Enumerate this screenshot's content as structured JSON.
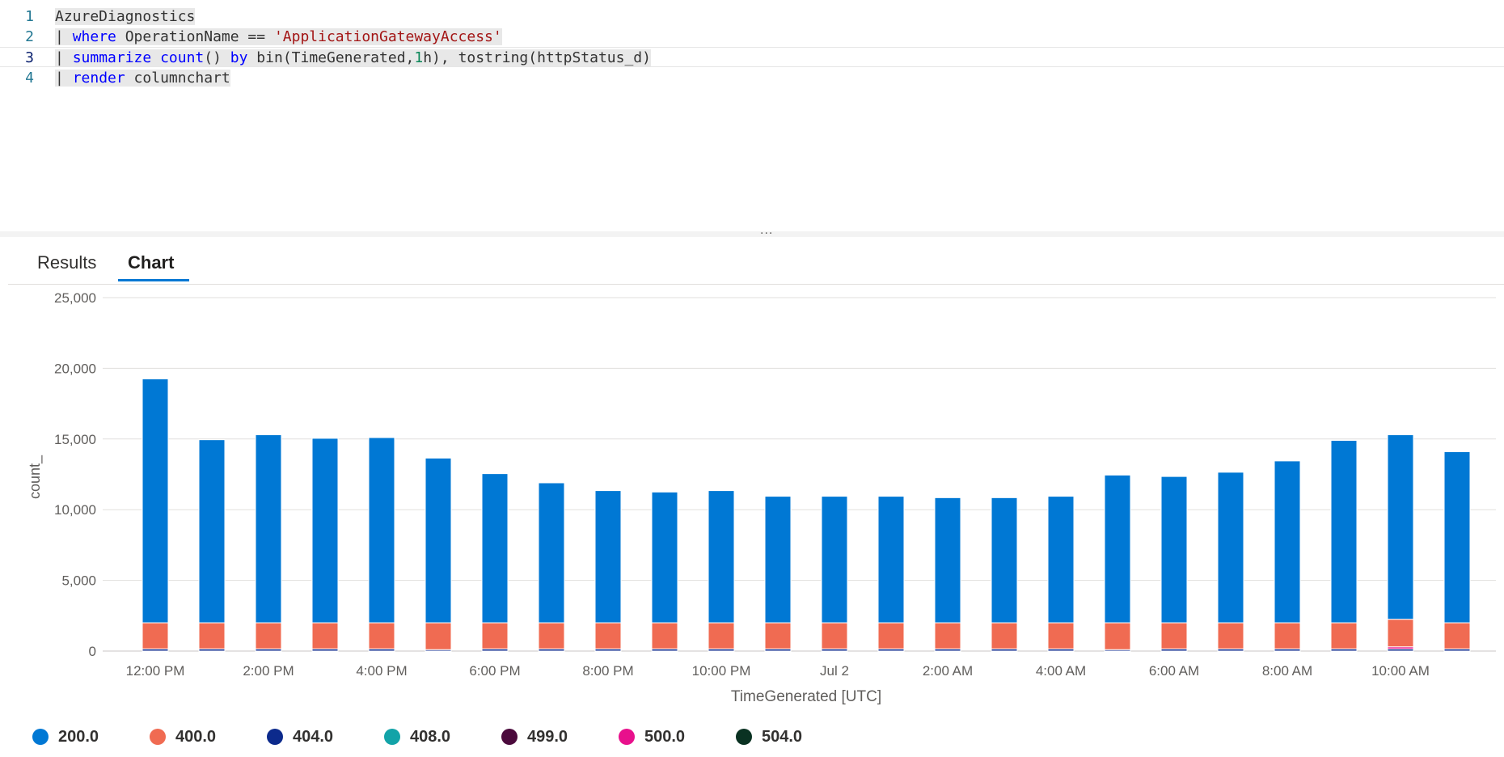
{
  "editor": {
    "lines": [
      {
        "num": "1",
        "tokens": [
          {
            "t": "AzureDiagnostics",
            "c": "plain"
          }
        ]
      },
      {
        "num": "2",
        "tokens": [
          {
            "t": "| ",
            "c": "plain"
          },
          {
            "t": "where",
            "c": "kw"
          },
          {
            "t": " OperationName == ",
            "c": "plain"
          },
          {
            "t": "'ApplicationGatewayAccess'",
            "c": "str"
          }
        ]
      },
      {
        "num": "3",
        "tokens": [
          {
            "t": "| ",
            "c": "plain"
          },
          {
            "t": "summarize",
            "c": "kw"
          },
          {
            "t": " ",
            "c": "plain"
          },
          {
            "t": "count",
            "c": "kw"
          },
          {
            "t": "() ",
            "c": "plain"
          },
          {
            "t": "by",
            "c": "kw"
          },
          {
            "t": " bin(TimeGenerated,",
            "c": "plain"
          },
          {
            "t": "1",
            "c": "num"
          },
          {
            "t": "h), tostring(httpStatus_d)",
            "c": "plain"
          }
        ]
      },
      {
        "num": "4",
        "tokens": [
          {
            "t": "| ",
            "c": "plain"
          },
          {
            "t": "render",
            "c": "kw"
          },
          {
            "t": " columnchart",
            "c": "plain"
          }
        ]
      }
    ]
  },
  "splitter": {
    "dots": "..."
  },
  "tabs": [
    {
      "label": "Results",
      "active": false
    },
    {
      "label": "Chart",
      "active": true
    }
  ],
  "chart_data": {
    "type": "bar",
    "stacked": true,
    "xlabel": "TimeGenerated [UTC]",
    "ylabel": "count_",
    "ylim": [
      0,
      25000
    ],
    "yticks": [
      0,
      5000,
      10000,
      15000,
      20000,
      25000
    ],
    "ytick_labels": [
      "0",
      "5,000",
      "10,000",
      "15,000",
      "20,000",
      "25,000"
    ],
    "grid": true,
    "legend_position": "bottom",
    "categories": [
      "12:00 PM",
      "1:00 PM",
      "2:00 PM",
      "3:00 PM",
      "4:00 PM",
      "5:00 PM",
      "6:00 PM",
      "7:00 PM",
      "8:00 PM",
      "9:00 PM",
      "10:00 PM",
      "11:00 PM",
      "Jul 2",
      "1:00 AM",
      "2:00 AM",
      "3:00 AM",
      "4:00 AM",
      "5:00 AM",
      "6:00 AM",
      "7:00 AM",
      "8:00 AM",
      "9:00 AM",
      "10:00 AM",
      "11:00 AM"
    ],
    "xtick_labels": [
      "12:00 PM",
      "2:00 PM",
      "4:00 PM",
      "6:00 PM",
      "8:00 PM",
      "10:00 PM",
      "Jul 2",
      "2:00 AM",
      "4:00 AM",
      "6:00 AM",
      "8:00 AM",
      "10:00 AM"
    ],
    "xtick_category_index": [
      0,
      2,
      4,
      6,
      8,
      10,
      12,
      14,
      16,
      18,
      20,
      22
    ],
    "series": [
      {
        "name": "404.0",
        "color": "#0c2a8c",
        "values": [
          150,
          150,
          150,
          150,
          150,
          100,
          150,
          150,
          150,
          150,
          150,
          150,
          150,
          150,
          150,
          150,
          150,
          100,
          150,
          150,
          150,
          150,
          150,
          150
        ]
      },
      {
        "name": "408.0",
        "color": "#12a3a8",
        "values": [
          0,
          0,
          0,
          0,
          0,
          0,
          0,
          0,
          0,
          0,
          0,
          0,
          0,
          0,
          0,
          0,
          0,
          0,
          0,
          0,
          0,
          0,
          0,
          0
        ]
      },
      {
        "name": "499.0",
        "color": "#4b0a3c",
        "values": [
          0,
          0,
          0,
          0,
          0,
          0,
          0,
          0,
          0,
          0,
          0,
          0,
          0,
          0,
          0,
          0,
          0,
          0,
          0,
          0,
          0,
          0,
          0,
          0
        ]
      },
      {
        "name": "500.0",
        "color": "#e8108c",
        "values": [
          0,
          0,
          0,
          0,
          0,
          0,
          0,
          0,
          0,
          0,
          0,
          0,
          0,
          0,
          0,
          0,
          0,
          0,
          0,
          0,
          0,
          0,
          150,
          0
        ]
      },
      {
        "name": "504.0",
        "color": "#0a3222",
        "values": [
          0,
          0,
          0,
          0,
          0,
          0,
          0,
          0,
          0,
          0,
          0,
          0,
          0,
          0,
          0,
          0,
          0,
          0,
          0,
          0,
          0,
          0,
          0,
          0
        ]
      },
      {
        "name": "400.0",
        "color": "#f06b52",
        "values": [
          1850,
          1850,
          1850,
          1850,
          1850,
          1900,
          1850,
          1850,
          1850,
          1850,
          1850,
          1850,
          1850,
          1850,
          1850,
          1850,
          1850,
          1900,
          1850,
          1850,
          1850,
          1850,
          1950,
          1850
        ]
      },
      {
        "name": "200.0",
        "color": "#0078d4",
        "values": [
          17250,
          12950,
          13300,
          13050,
          13100,
          11650,
          10550,
          9900,
          9350,
          9250,
          9350,
          8950,
          8950,
          8950,
          8850,
          8850,
          8950,
          10450,
          10350,
          10650,
          11450,
          12900,
          13050,
          12100
        ]
      }
    ]
  },
  "legend": [
    {
      "name": "200.0",
      "color": "#0078d4"
    },
    {
      "name": "400.0",
      "color": "#f06b52"
    },
    {
      "name": "404.0",
      "color": "#0c2a8c"
    },
    {
      "name": "408.0",
      "color": "#12a3a8"
    },
    {
      "name": "499.0",
      "color": "#4b0a3c"
    },
    {
      "name": "500.0",
      "color": "#e8108c"
    },
    {
      "name": "504.0",
      "color": "#0a3222"
    }
  ]
}
